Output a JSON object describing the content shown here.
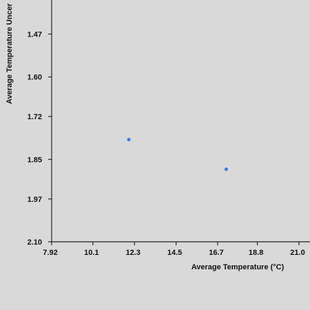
{
  "chart_data": {
    "type": "scatter",
    "xlabel": "Average Temperature (°C)",
    "ylabel": "Average Temperature Uncer",
    "x_ticks": [
      "7.92",
      "10.1",
      "12.3",
      "14.5",
      "16.7",
      "18.8",
      "21.0"
    ],
    "y_ticks": [
      "1.47",
      "1.60",
      "1.72",
      "1.85",
      "1.97",
      "2.10"
    ],
    "xlim": [
      7.92,
      21.0
    ],
    "ylim": [
      1.35,
      2.1
    ],
    "y_inverted": true,
    "grid": false,
    "point_color": "#3a78e0",
    "points": [
      {
        "x": 12.0,
        "y": 1.79
      },
      {
        "x": 17.15,
        "y": 1.88
      }
    ]
  }
}
